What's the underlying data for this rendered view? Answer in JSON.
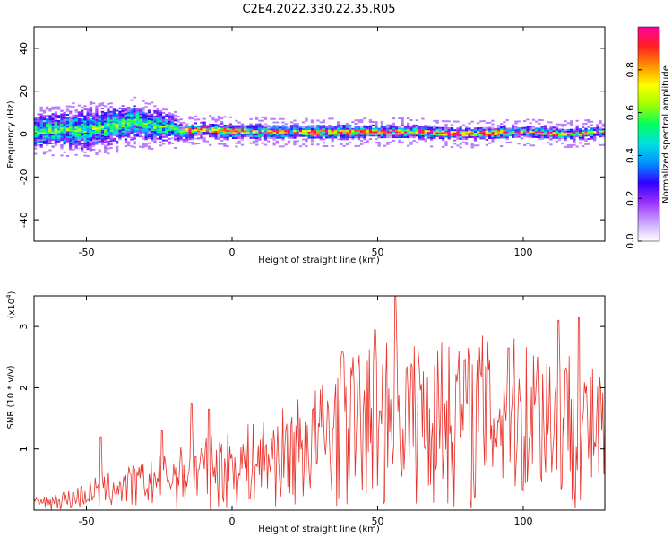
{
  "title": "C2E4.2022.330.22.35.R05",
  "chart_data": [
    {
      "type": "heatmap",
      "name": "spectrogram",
      "xlabel": "Height of straight line (km)",
      "ylabel": "Frequency (Hz)",
      "xlim": [
        -68,
        128
      ],
      "ylim": [
        -50,
        50
      ],
      "xticks": [
        -50,
        0,
        50,
        100
      ],
      "yticks": [
        40,
        20,
        0,
        -20,
        -40
      ],
      "colorbar": {
        "label": "Normalized spectral amplitude",
        "range": [
          0,
          1
        ],
        "ticks": [
          0.0,
          0.2,
          0.4,
          0.6,
          0.8
        ],
        "colors": [
          "#ffffff",
          "#c8a0ff",
          "#9b30ff",
          "#3000ff",
          "#0090ff",
          "#00e0e0",
          "#00ff60",
          "#a0ff00",
          "#ffff00",
          "#ff9000",
          "#ff2020",
          "#ff00a0"
        ]
      },
      "band_center_hz": [
        [
          -68,
          1
        ],
        [
          -60,
          2
        ],
        [
          -50,
          2
        ],
        [
          -40,
          4
        ],
        [
          -33,
          6
        ],
        [
          -28,
          4
        ],
        [
          -22,
          3
        ],
        [
          -18,
          1
        ],
        [
          -10,
          2
        ],
        [
          0,
          1
        ],
        [
          20,
          1
        ],
        [
          40,
          1
        ],
        [
          60,
          1
        ],
        [
          80,
          0
        ],
        [
          100,
          1
        ],
        [
          115,
          0
        ],
        [
          128,
          1
        ]
      ],
      "band_halfwidth_hz": [
        [
          -68,
          8
        ],
        [
          -50,
          10
        ],
        [
          -35,
          9
        ],
        [
          -22,
          7
        ],
        [
          -18,
          4
        ],
        [
          128,
          3
        ]
      ]
    },
    {
      "type": "line",
      "name": "snr",
      "xlabel": "Height of straight line (km)",
      "ylabel": "SNR (10 * v/v)",
      "scale_label": "(x10",
      "scale_exp": "4",
      "scale_close": ")",
      "xlim": [
        -68,
        128
      ],
      "ylim": [
        0,
        3.5
      ],
      "xticks": [
        -50,
        0,
        50,
        100
      ],
      "yticks": [
        1,
        2,
        3
      ],
      "line_color": "#e8312a",
      "envelope": [
        [
          -68,
          0.2
        ],
        [
          -55,
          0.35
        ],
        [
          -45,
          0.6
        ],
        [
          -30,
          0.8
        ],
        [
          -20,
          1.0
        ],
        [
          -10,
          1.2
        ],
        [
          0,
          1.3
        ],
        [
          15,
          1.6
        ],
        [
          30,
          2.1
        ],
        [
          40,
          2.6
        ],
        [
          55,
          2.8
        ],
        [
          70,
          2.7
        ],
        [
          90,
          2.8
        ],
        [
          110,
          2.9
        ],
        [
          128,
          2.2
        ]
      ],
      "peaks": [
        [
          -45,
          1.2
        ],
        [
          -24,
          1.3
        ],
        [
          -14,
          1.75
        ],
        [
          -8,
          1.65
        ],
        [
          38,
          2.6
        ],
        [
          49,
          2.95
        ],
        [
          56,
          3.5
        ],
        [
          64,
          2.6
        ],
        [
          72,
          2.75
        ],
        [
          78,
          2.6
        ],
        [
          86,
          2.85
        ],
        [
          95,
          2.65
        ],
        [
          105,
          2.5
        ],
        [
          112,
          3.1
        ],
        [
          119,
          3.15
        ]
      ]
    }
  ]
}
